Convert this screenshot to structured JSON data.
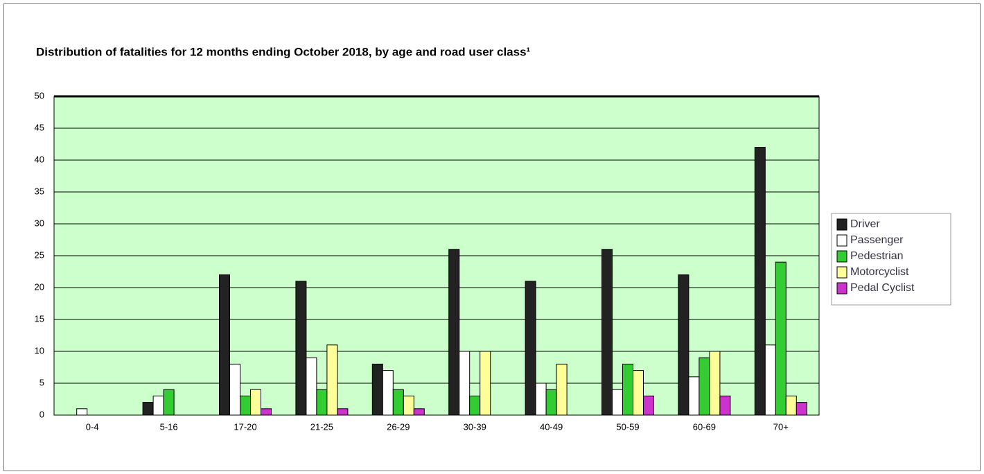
{
  "chart_data": {
    "type": "bar",
    "title": "Distribution of fatalities for 12 months ending October 2018, by age and road user class¹",
    "categories": [
      "0-4",
      "5-16",
      "17-20",
      "21-25",
      "26-29",
      "30-39",
      "40-49",
      "50-59",
      "60-69",
      "70+"
    ],
    "series": [
      {
        "name": "Driver",
        "color": "#222222",
        "values": [
          0,
          2,
          22,
          21,
          8,
          26,
          21,
          26,
          22,
          42
        ]
      },
      {
        "name": "Passenger",
        "color": "#ffffff",
        "values": [
          1,
          3,
          8,
          9,
          7,
          10,
          5,
          4,
          6,
          11
        ]
      },
      {
        "name": "Pedestrian",
        "color": "#33cc33",
        "values": [
          0,
          4,
          3,
          4,
          4,
          3,
          4,
          8,
          9,
          24
        ]
      },
      {
        "name": "Motorcyclist",
        "color": "#ffff99",
        "values": [
          0,
          0,
          4,
          11,
          3,
          10,
          8,
          7,
          10,
          3
        ]
      },
      {
        "name": "Pedal Cyclist",
        "color": "#cc33cc",
        "values": [
          0,
          0,
          1,
          1,
          1,
          0,
          0,
          3,
          3,
          2
        ]
      }
    ],
    "ylim": [
      0,
      50
    ],
    "yticks": [
      0,
      5,
      10,
      15,
      20,
      25,
      30,
      35,
      40,
      45,
      50
    ],
    "grid": true,
    "plot_background": "#ccffcc",
    "legend": "right"
  }
}
